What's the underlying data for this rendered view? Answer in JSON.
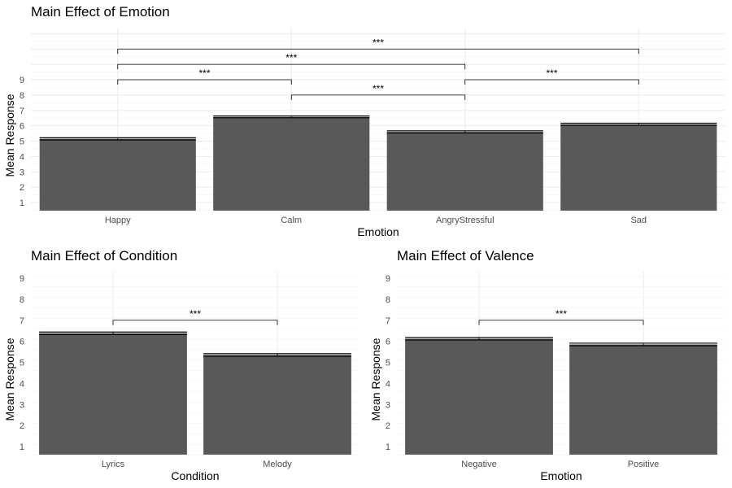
{
  "chart_data": [
    {
      "type": "bar",
      "title": "Main Effect of Emotion",
      "xlabel": "Emotion",
      "ylabel": "Mean Response",
      "categories": [
        "Happy",
        "Calm",
        "AngryStressful",
        "Sad"
      ],
      "values": [
        5.15,
        6.58,
        5.6,
        6.1
      ],
      "errors": [
        0.07,
        0.06,
        0.07,
        0.07
      ],
      "yticks": [
        1,
        2,
        3,
        4,
        5,
        6,
        7,
        8,
        9
      ],
      "ylim": [
        0.5,
        10.4
      ],
      "grid": true,
      "bar_color": "#595959",
      "comparisons": [
        {
          "from": 1,
          "to": 2,
          "y": 8.0,
          "label": "***"
        },
        {
          "from": 0,
          "to": 1,
          "y": 9.0,
          "label": "***"
        },
        {
          "from": 2,
          "to": 3,
          "y": 9.0,
          "label": "***"
        },
        {
          "from": 0,
          "to": 2,
          "y": 10.0,
          "label": "***"
        },
        {
          "from": 0,
          "to": 3,
          "y": 11.0,
          "label": "***"
        }
      ]
    },
    {
      "type": "bar",
      "title": "Main Effect of Condition",
      "xlabel": "Condition",
      "ylabel": "Mean Response",
      "categories": [
        "Lyrics",
        "Melody"
      ],
      "values": [
        6.38,
        5.35
      ],
      "errors": [
        0.06,
        0.06
      ],
      "yticks": [
        1,
        2,
        3,
        4,
        5,
        6,
        7,
        8,
        9
      ],
      "ylim": [
        0.6,
        9.4
      ],
      "grid": true,
      "bar_color": "#595959",
      "comparisons": [
        {
          "from": 0,
          "to": 1,
          "y": 7.0,
          "label": "***"
        }
      ]
    },
    {
      "type": "bar",
      "title": "Main Effect of Valence",
      "xlabel": "Emotion",
      "ylabel": "Mean Response",
      "categories": [
        "Negative",
        "Positive"
      ],
      "values": [
        6.12,
        5.85
      ],
      "errors": [
        0.06,
        0.06
      ],
      "yticks": [
        1,
        2,
        3,
        4,
        5,
        6,
        7,
        8,
        9
      ],
      "ylim": [
        0.6,
        9.4
      ],
      "grid": true,
      "bar_color": "#595959",
      "comparisons": [
        {
          "from": 0,
          "to": 1,
          "y": 7.0,
          "label": "***"
        }
      ]
    }
  ]
}
